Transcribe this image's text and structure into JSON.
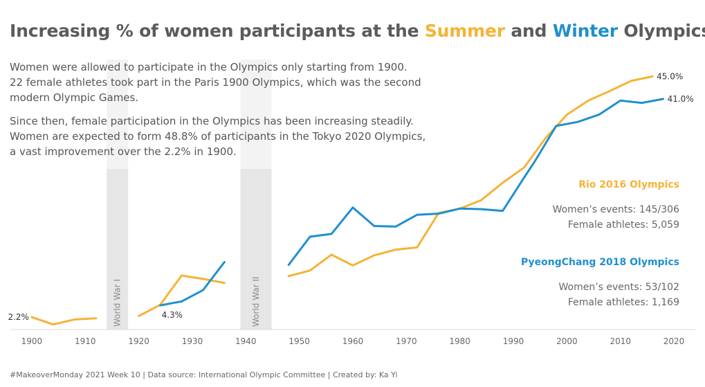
{
  "header": {
    "title_prefix": "Increasing % of women participants at the",
    "title_summer": "Summer",
    "title_and": "and",
    "title_winter": "Winter",
    "title_suffix": "Olympics"
  },
  "intro": {
    "paragraph1": "Women were allowed to participate in the Olympics only starting from 1900.\n22 female athletes took part in the Paris 1900 Olympics, which was the second\nmodern Olympic Games.",
    "paragraph2": "Since then, female participation in the Olympics has been increasing steadily.\nWomen are expected to form 48.8% of participants in the Tokyo 2020 Olympics,\na vast improvement over the 2.2% in 1900."
  },
  "rio": {
    "title": "Rio 2016 Olympics",
    "events": "Women’s events: 145/306",
    "athletes": "Female athletes: 5,059"
  },
  "pyeongchang": {
    "title": "PyeongChang 2018 Olympics",
    "events": "Women’s events: 53/102",
    "athletes": "Female athletes: 1,169"
  },
  "footer": "#MakeoverMonday 2021 Week 10 | Data source: International Olympic Committee | Created by: Ka Yi",
  "colors": {
    "summer": "#f5b335",
    "winter": "#1f8fce",
    "war_band": "#e6e6e6",
    "war_band_light": "#f3f3f3",
    "axis": "#d9d9d9",
    "text": "#555555"
  },
  "chart_data": {
    "type": "line",
    "xlim": [
      1896,
      2024
    ],
    "ylim": [
      0,
      48
    ],
    "x_ticks": [
      1900,
      1910,
      1920,
      1930,
      1940,
      1950,
      1960,
      1970,
      1980,
      1990,
      2000,
      2010,
      2020
    ],
    "war_bands": [
      {
        "label": "World War I",
        "start": 1914,
        "end": 1918
      },
      {
        "label": "World War II",
        "start": 1939,
        "end": 1944.8
      }
    ],
    "series": [
      {
        "name": "Summer",
        "color": "#f5b335",
        "segments": [
          {
            "x": [
              1900,
              1904,
              1908,
              1912
            ],
            "y": [
              2.2,
              0.9,
              1.8,
              2.0
            ]
          },
          {
            "x": [
              1920,
              1924,
              1928,
              1932,
              1936
            ],
            "y": [
              2.4,
              4.4,
              9.6,
              9.0,
              8.3
            ]
          },
          {
            "x": [
              1948,
              1952,
              1956,
              1960,
              1964,
              1968,
              1972,
              1976,
              1980,
              1984,
              1988,
              1992,
              1996,
              2000,
              2004,
              2008,
              2012,
              2016
            ],
            "y": [
              9.5,
              10.5,
              13.3,
              11.4,
              13.2,
              14.2,
              14.6,
              20.7,
              21.5,
              23.0,
              26.1,
              28.8,
              34.0,
              38.2,
              40.7,
              42.4,
              44.2,
              45.0
            ]
          }
        ]
      },
      {
        "name": "Winter",
        "color": "#1f8fce",
        "segments": [
          {
            "x": [
              1924,
              1928,
              1932,
              1936
            ],
            "y": [
              4.3,
              5.0,
              7.0,
              12.0
            ]
          },
          {
            "x": [
              1948,
              1952,
              1956,
              1960,
              1964,
              1968,
              1972,
              1976,
              1980,
              1984,
              1988,
              1992,
              1994,
              1998,
              2002,
              2006,
              2010,
              2014,
              2018
            ],
            "y": [
              11.5,
              16.5,
              17.0,
              21.7,
              18.4,
              18.3,
              20.4,
              20.6,
              21.5,
              21.4,
              21.1,
              27.0,
              29.9,
              36.2,
              36.9,
              38.2,
              40.7,
              40.3,
              41.0
            ]
          }
        ]
      }
    ],
    "labels": [
      {
        "text": "2.2%",
        "x": 1900,
        "y": 2.2,
        "anchor": "end",
        "dx": -4,
        "dy": 4
      },
      {
        "text": "4.3%",
        "x": 1924,
        "y": 4.3,
        "anchor": "start",
        "dx": 2,
        "dy": 18
      },
      {
        "text": "45.0%",
        "x": 2016,
        "y": 45.0,
        "anchor": "start",
        "dx": 6,
        "dy": 4
      },
      {
        "text": "41.0%",
        "x": 2018,
        "y": 41.0,
        "anchor": "start",
        "dx": 6,
        "dy": 4
      }
    ]
  }
}
